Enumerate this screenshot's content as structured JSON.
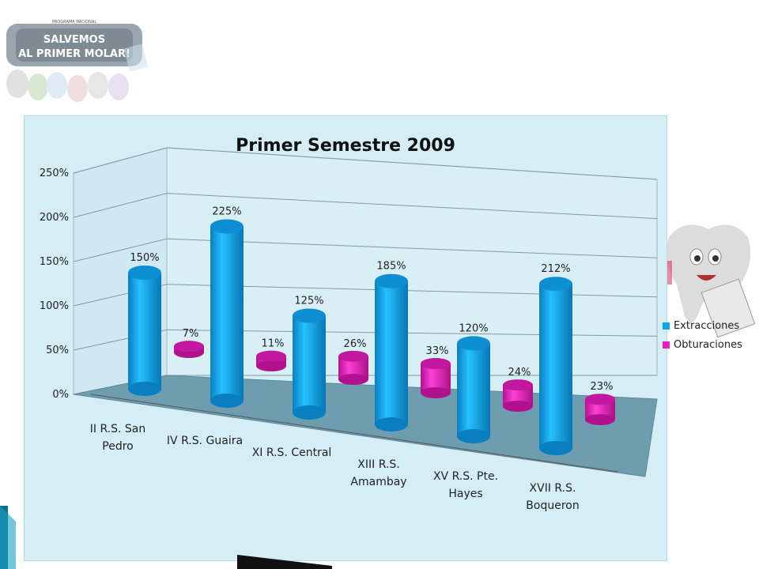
{
  "logo": {
    "top_text": "PROGRAMA NACIONAL",
    "line1": "SALVEMOS",
    "line2": "AL PRIMER MOLAR!"
  },
  "chart_data": {
    "type": "bar",
    "title": "Primer Semestre  2009",
    "categories": [
      [
        "II R.S. San",
        "Pedro"
      ],
      [
        "IV R.S. Guaira"
      ],
      [
        "XI R.S. Central"
      ],
      [
        "XIII R.S.",
        "Amambay"
      ],
      [
        "XV R.S. Pte.",
        "Hayes"
      ],
      [
        "XVII R.S.",
        "Boqueron"
      ]
    ],
    "series": [
      {
        "name": "Extracciones",
        "color": "#12a3e6",
        "values": [
          150,
          225,
          125,
          185,
          120,
          212
        ],
        "labels": [
          "150%",
          "225%",
          "125%",
          "185%",
          "120%",
          "212%"
        ]
      },
      {
        "name": "Obturaciones",
        "color": "#e61fc0",
        "values": [
          7,
          11,
          26,
          33,
          24,
          23
        ],
        "labels": [
          "7%",
          "11%",
          "26%",
          "33%",
          "24%",
          "23%"
        ]
      }
    ],
    "yticks": [
      "0%",
      "50%",
      "100%",
      "150%",
      "200%",
      "250%"
    ],
    "ylim": [
      0,
      250
    ],
    "legend_position": "right",
    "grid": true,
    "style": "3d cylinders"
  }
}
